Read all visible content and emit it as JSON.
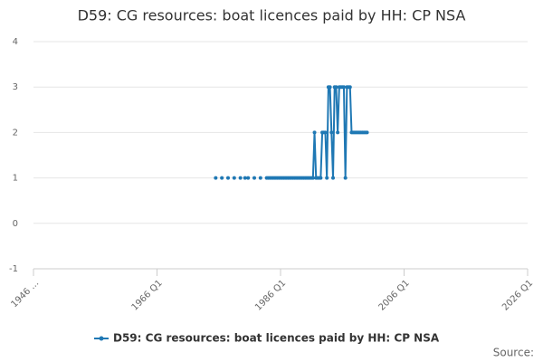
{
  "chart_data": {
    "type": "line",
    "title": "D59: CG resources: boat licences paid by HH: CP NSA",
    "source": "Source:",
    "x": [
      1975.5,
      1975.75,
      1976.5,
      1976.75,
      1977.5,
      1977.75,
      1978.5,
      1978.75,
      1979.5,
      1979.75,
      1980.25,
      1980.5,
      1980.75,
      1981,
      1981.75,
      1982,
      1982.75,
      1983,
      1983.75,
      1984,
      1984.25,
      1984.5,
      1984.75,
      1985,
      1985.25,
      1985.5,
      1985.75,
      1986,
      1986.25,
      1986.5,
      1986.75,
      1987,
      1987.25,
      1987.5,
      1987.75,
      1988,
      1988.25,
      1988.5,
      1988.75,
      1989,
      1989.25,
      1989.5,
      1989.75,
      1990,
      1990.25,
      1990.5,
      1990.75,
      1991,
      1991.25,
      1991.5,
      1991.75,
      1992,
      1992.25,
      1992.5,
      1992.75,
      1993,
      1993.25,
      1993.5,
      1993.75,
      1994,
      1994.25,
      1994.5,
      1994.75,
      1995,
      1995.25,
      1995.5,
      1995.75,
      1996,
      1996.25,
      1996.5,
      1996.75,
      1997,
      1997.25,
      1997.5,
      1997.75,
      1998,
      1998.25,
      1998.5,
      1998.75,
      1999,
      1999.25,
      1999.5,
      1999.75,
      2000
    ],
    "series": [
      {
        "name": "D59: CG resources: boat licences paid by HH: CP NSA",
        "color": "#1f78b4",
        "values": [
          1,
          null,
          1,
          null,
          1,
          null,
          1,
          null,
          1,
          null,
          1,
          null,
          1,
          null,
          1,
          null,
          1,
          null,
          1,
          1,
          1,
          1,
          1,
          1,
          1,
          1,
          1,
          1,
          1,
          1,
          1,
          1,
          1,
          1,
          1,
          1,
          1,
          1,
          1,
          1,
          1,
          1,
          1,
          1,
          1,
          1,
          1,
          1,
          1,
          2,
          1,
          1,
          1,
          1,
          2,
          2,
          2,
          1,
          3,
          3,
          2,
          1,
          3,
          3,
          2,
          3,
          3,
          3,
          3,
          1,
          3,
          3,
          3,
          2,
          2,
          2,
          2,
          2,
          2,
          2,
          2,
          2,
          2,
          2
        ]
      }
    ],
    "xlim": [
      1946,
      2026
    ],
    "xticks": [
      {
        "value": 1946,
        "label": "1946 ..."
      },
      {
        "value": 1966,
        "label": "1966 Q1"
      },
      {
        "value": 1986,
        "label": "1986 Q1"
      },
      {
        "value": 2006,
        "label": "2006 Q1"
      },
      {
        "value": 2026,
        "label": "2026 Q1"
      }
    ],
    "ylim": [
      -1,
      4
    ],
    "yticks": [
      -1,
      0,
      1,
      2,
      3,
      4
    ],
    "grid": true
  }
}
